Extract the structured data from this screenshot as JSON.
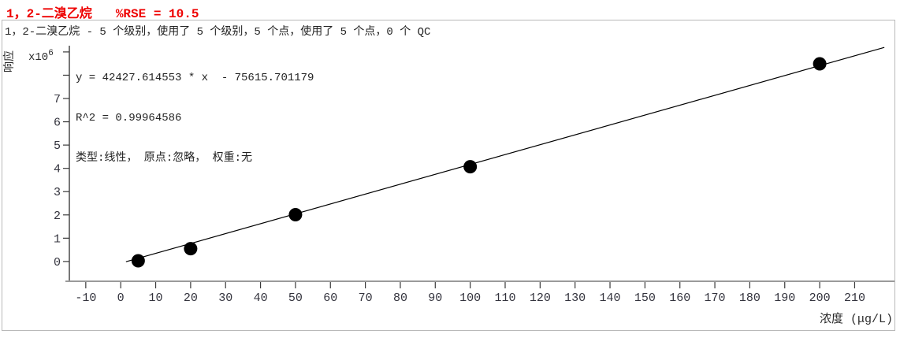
{
  "header": {
    "compound": "1，2-二溴乙烷",
    "rse_label": "%RSE = 10.5",
    "title_color": "#ee0000"
  },
  "subtitle": "1，2-二溴乙烷 - 5 个级别，使用了 5 个级别，5 个点，使用了 5 个点，0 个 QC",
  "fit_info": {
    "equation": "y = 42427.614553 * x  - 75615.701179",
    "r_squared": "R^2 = 0.99964586",
    "fit_settings": "类型:线性， 原点:忽略， 权重:无"
  },
  "chart_data": {
    "type": "scatter",
    "title": "",
    "xlabel": "浓度 (μg/L)",
    "ylabel": "响应",
    "y_multiplier_base": "x10",
    "y_multiplier_exp": "6",
    "xlim": [
      -14.7,
      221.4
    ],
    "ylim": [
      -0.85,
      9.2
    ],
    "x_ticks": [
      -10,
      0,
      10,
      20,
      30,
      40,
      50,
      60,
      70,
      80,
      90,
      100,
      110,
      120,
      130,
      140,
      150,
      160,
      170,
      180,
      190,
      200,
      210
    ],
    "y_ticks_labeled": [
      0,
      1,
      2,
      3,
      4,
      5,
      6,
      7
    ],
    "y_ticks_unlabeled": [
      8,
      9
    ],
    "grid": false,
    "points": [
      {
        "conc": 5,
        "response_x1e6": 0.03
      },
      {
        "conc": 20,
        "response_x1e6": 0.55
      },
      {
        "conc": 50,
        "response_x1e6": 2.01
      },
      {
        "conc": 100,
        "response_x1e6": 4.07
      },
      {
        "conc": 200,
        "response_x1e6": 8.49
      }
    ],
    "fit": {
      "type_label": "线性",
      "slope": 42427.614553,
      "intercept": -75615.701179,
      "r2": 0.99964586,
      "rse_percent": 10.5,
      "line_x_range": [
        1.5,
        218.5
      ]
    },
    "colors": {
      "point": "#000000",
      "fit_line": "#000000",
      "y_axis": "#2e2e2e",
      "x_axis_bar": "#9a9a9a",
      "tick": "#3a3a3a",
      "tick_label": "#33333d",
      "axis_label": "#2b2b2b"
    }
  }
}
